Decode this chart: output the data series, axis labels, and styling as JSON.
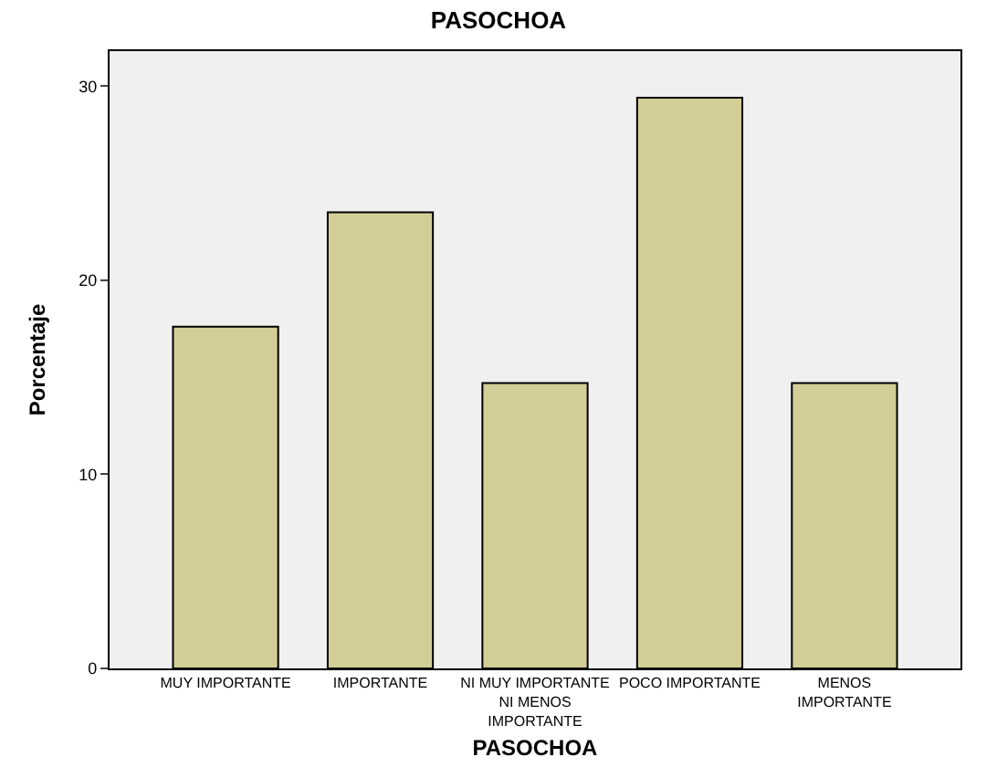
{
  "chart_data": {
    "type": "bar",
    "title": "PASOCHOA",
    "xlabel": "PASOCHOA",
    "ylabel": "Porcentaje",
    "categories": [
      "MUY IMPORTANTE",
      "IMPORTANTE",
      "NI MUY IMPORTANTE\nNI MENOS\nIMPORTANTE",
      "POCO IMPORTANTE",
      "MENOS\nIMPORTANTE"
    ],
    "values": [
      17.6,
      23.5,
      14.7,
      29.4,
      14.7
    ],
    "color": "#d3ce97",
    "ylim": [
      0,
      31.8
    ],
    "yticks": [
      0,
      10,
      20,
      30
    ],
    "grid": false,
    "legend": false
  }
}
